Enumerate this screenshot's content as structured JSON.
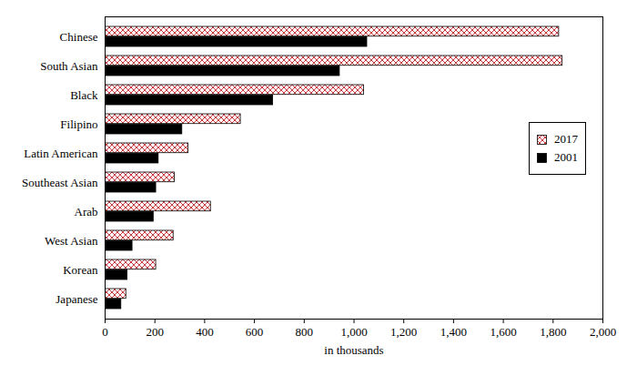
{
  "chart_data": {
    "type": "bar",
    "orientation": "horizontal",
    "categories": [
      "Chinese",
      "South Asian",
      "Black",
      "Filipino",
      "Latin American",
      "Southeast Asian",
      "Arab",
      "West Asian",
      "Korean",
      "Japanese"
    ],
    "series": [
      {
        "name": "2017",
        "color": "#c0282d",
        "values": [
          1824,
          1838,
          1040,
          545,
          335,
          280,
          425,
          275,
          205,
          85
        ]
      },
      {
        "name": "2001",
        "color": "#000000",
        "values": [
          1053,
          943,
          675,
          310,
          215,
          205,
          195,
          110,
          90,
          65
        ]
      }
    ],
    "x_label": "in thousands",
    "xlim": [
      0,
      2000
    ],
    "xticks": [
      0,
      200,
      400,
      600,
      800,
      {
        "value": 1000,
        "label": "1,000"
      },
      {
        "value": 1200,
        "label": "1,200"
      },
      {
        "value": 1400,
        "label": "1,400"
      },
      {
        "value": 1600,
        "label": "1,600"
      },
      {
        "value": 1800,
        "label": "1,800"
      },
      {
        "value": 2000,
        "label": "2,000"
      }
    ],
    "grid": false,
    "legend": "right"
  }
}
